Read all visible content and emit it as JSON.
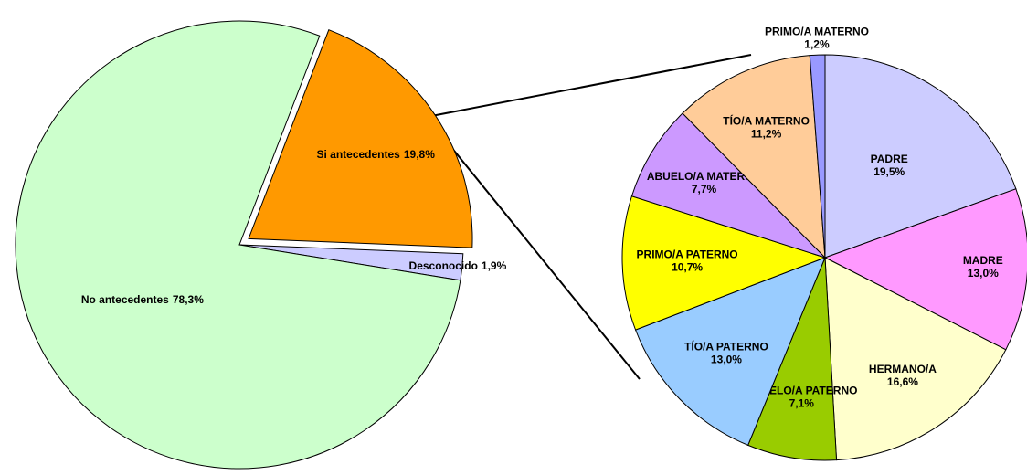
{
  "chart_data": [
    {
      "type": "pie",
      "categories": [
        "Si antecedentes",
        "Desconocido",
        "No antecedentes"
      ],
      "values": [
        19.8,
        1.9,
        78.3
      ],
      "value_labels": [
        "19,8%",
        "1,9%",
        "78,3%"
      ],
      "colors": [
        "#ff9900",
        "#ccccff",
        "#ccffcc"
      ]
    },
    {
      "type": "pie",
      "categories": [
        "PADRE",
        "MADRE",
        "HERMANO/A",
        "ABUELO/A PATERNO",
        "TÍO/A PATERNO",
        "PRIMO/A PATERNO",
        "ABUELO/A MATERNO",
        "TÍO/A MATERNO",
        "PRIMO/A MATERNO"
      ],
      "values": [
        19.5,
        13.0,
        16.6,
        7.1,
        13.0,
        10.7,
        7.7,
        11.2,
        1.2
      ],
      "value_labels": [
        "19,5%",
        "13,0%",
        "16,6%",
        "7,1%",
        "13,0%",
        "10,7%",
        "7,7%",
        "11,2%",
        "1,2%"
      ],
      "colors": [
        "#ccccff",
        "#ff99ff",
        "#ffffcc",
        "#99cc00",
        "#99ccff",
        "#ffff00",
        "#cc99ff",
        "#ffcc99",
        "#9999ff"
      ]
    }
  ]
}
